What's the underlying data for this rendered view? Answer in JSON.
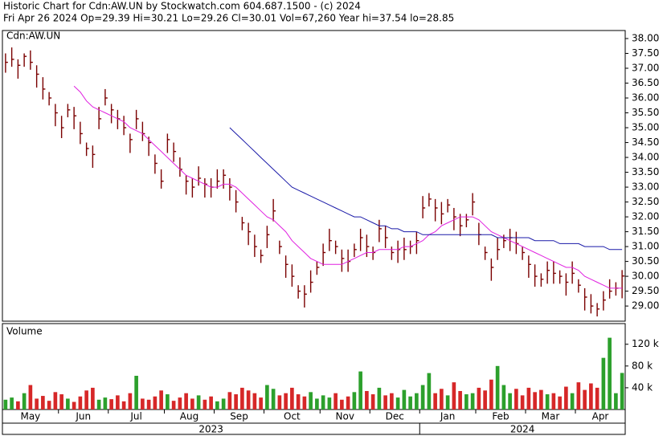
{
  "chart_data": {
    "type": "ohlc",
    "title": "Historic Chart for Cdn:AW.UN by Stockwatch.com 604.687.1500 - (c) 2024",
    "subtitle": "Fri Apr 26 2024  Op=29.39  Hi=30.21  Lo=29.26  Cl=30.01  Vol=67,260  Year hi=37.54  lo=28.85",
    "price_label": "Cdn:AW.UN",
    "volume_label": "Volume",
    "categories": [
      "May",
      null,
      null,
      null,
      null,
      null,
      null,
      null,
      null,
      "Jun",
      null,
      null,
      null,
      null,
      null,
      null,
      null,
      "Jul",
      null,
      null,
      null,
      null,
      null,
      null,
      null,
      null,
      "Aug",
      null,
      null,
      null,
      null,
      null,
      null,
      null,
      "Sep",
      null,
      null,
      null,
      null,
      null,
      null,
      null,
      "Oct",
      null,
      null,
      null,
      null,
      null,
      null,
      null,
      null,
      "Nov",
      null,
      null,
      null,
      null,
      null,
      null,
      null,
      "Dec",
      null,
      null,
      null,
      null,
      null,
      null,
      null,
      "Jan",
      null,
      null,
      null,
      null,
      null,
      null,
      null,
      null,
      "Feb",
      null,
      null,
      null,
      null,
      null,
      null,
      null,
      "Mar",
      null,
      null,
      null,
      null,
      null,
      null,
      null,
      "Apr",
      null,
      null,
      null,
      null,
      null,
      null,
      null
    ],
    "years": [
      "2023",
      null,
      null,
      null,
      null,
      null,
      null,
      null,
      null,
      null,
      null,
      null,
      null,
      null,
      null,
      null,
      null,
      null,
      null,
      null,
      null,
      null,
      null,
      null,
      null,
      null,
      null,
      null,
      null,
      null,
      null,
      null,
      null,
      null,
      null,
      null,
      null,
      null,
      null,
      null,
      null,
      null,
      null,
      null,
      null,
      null,
      null,
      null,
      null,
      null,
      null,
      null,
      null,
      null,
      null,
      null,
      null,
      null,
      null,
      null,
      null,
      null,
      null,
      null,
      null,
      null,
      null,
      "2024",
      null,
      null,
      null,
      null,
      null,
      null,
      null,
      null,
      null,
      null,
      null,
      null,
      null,
      null,
      null,
      null,
      null,
      null,
      null,
      null,
      null,
      null,
      null,
      null,
      null,
      null,
      null,
      null,
      null,
      null,
      null,
      null
    ],
    "bar_color": "#7a0000",
    "up_color": "#2ca02c",
    "down_color": "#d62728",
    "high": [
      37.5,
      37.7,
      37.3,
      37.5,
      37.6,
      37.1,
      36.7,
      36.2,
      35.8,
      35.4,
      35.8,
      35.7,
      35.2,
      34.5,
      34.4,
      35.7,
      36.3,
      35.8,
      35.6,
      35.4,
      34.8,
      35.6,
      35.2,
      34.7,
      34.1,
      33.6,
      34.8,
      34.5,
      34.0,
      33.4,
      33.3,
      33.7,
      33.3,
      33.3,
      33.6,
      33.6,
      33.3,
      32.9,
      32.0,
      31.8,
      31.4,
      30.9,
      31.7,
      32.6,
      31.2,
      30.7,
      30.4,
      29.7,
      29.7,
      30.2,
      30.5,
      31.1,
      31.6,
      31.2,
      30.9,
      30.9,
      31.1,
      31.6,
      31.4,
      31.0,
      31.9,
      31.7,
      31.0,
      31.2,
      31.3,
      31.2,
      31.5,
      32.7,
      32.8,
      32.6,
      32.5,
      32.6,
      32.3,
      32.1,
      32.1,
      32.8,
      31.8,
      31.0,
      30.6,
      31.3,
      31.4,
      31.6,
      31.5,
      31.0,
      30.7,
      30.4,
      30.1,
      30.5,
      30.5,
      30.2,
      30.1,
      30.5,
      29.9,
      29.6,
      29.4,
      29.1,
      29.5,
      29.9,
      29.8,
      30.21
    ],
    "low": [
      36.85,
      37.05,
      36.65,
      37.05,
      36.95,
      36.35,
      35.95,
      35.75,
      35.05,
      34.65,
      35.35,
      34.95,
      34.45,
      34.05,
      33.65,
      34.95,
      35.75,
      35.15,
      34.95,
      34.75,
      34.15,
      34.95,
      34.55,
      34.05,
      33.45,
      32.95,
      34.15,
      33.85,
      33.35,
      32.75,
      32.65,
      33.05,
      32.65,
      32.65,
      32.95,
      32.95,
      32.55,
      32.15,
      31.55,
      31.05,
      30.65,
      30.45,
      30.95,
      31.85,
      30.75,
      29.95,
      29.65,
      29.25,
      28.95,
      29.45,
      30.05,
      30.35,
      30.85,
      30.75,
      30.15,
      30.15,
      30.65,
      30.85,
      30.65,
      30.55,
      31.15,
      30.95,
      30.55,
      30.45,
      30.55,
      30.75,
      30.75,
      31.95,
      32.35,
      31.85,
      31.75,
      32.15,
      31.55,
      31.35,
      31.65,
      32.05,
      31.05,
      30.55,
      29.85,
      30.55,
      30.95,
      30.85,
      30.75,
      30.55,
      29.95,
      29.65,
      29.65,
      29.75,
      29.75,
      29.75,
      29.35,
      29.75,
      29.45,
      28.85,
      28.75,
      28.65,
      28.85,
      29.25,
      29.35,
      29.26
    ],
    "close": [
      37.2,
      37.3,
      37.1,
      37.4,
      37.2,
      36.8,
      36.3,
      36.0,
      35.5,
      35.0,
      35.6,
      35.4,
      34.8,
      34.3,
      34.1,
      35.3,
      36.0,
      35.6,
      35.3,
      35.0,
      34.6,
      35.3,
      34.8,
      34.5,
      33.8,
      33.2,
      34.6,
      34.2,
      33.6,
      33.2,
      33.0,
      33.3,
      33.1,
      33.0,
      33.2,
      33.4,
      33.0,
      32.5,
      31.8,
      31.5,
      31.0,
      30.7,
      31.4,
      32.2,
      31.0,
      30.4,
      30.0,
      29.5,
      29.4,
      29.8,
      30.3,
      30.8,
      31.2,
      31.0,
      30.6,
      30.5,
      30.9,
      31.3,
      31.0,
      30.8,
      31.6,
      31.3,
      30.8,
      30.9,
      30.9,
      31.0,
      31.2,
      32.3,
      32.6,
      32.3,
      32.1,
      32.4,
      32.0,
      31.7,
      31.9,
      32.5,
      31.4,
      30.8,
      30.3,
      30.9,
      31.2,
      31.3,
      31.1,
      30.8,
      30.4,
      30.0,
      29.9,
      30.2,
      30.1,
      30.0,
      29.8,
      30.1,
      29.7,
      29.3,
      29.0,
      28.9,
      29.2,
      29.5,
      29.6,
      30.01
    ],
    "moving_averages": [
      {
        "color": "#e020e0",
        "values": [
          null,
          null,
          null,
          null,
          null,
          null,
          null,
          null,
          null,
          null,
          null,
          36.4,
          36.2,
          35.9,
          35.7,
          35.6,
          35.5,
          35.4,
          35.3,
          35.2,
          35.0,
          34.9,
          34.8,
          34.6,
          34.4,
          34.2,
          34.0,
          33.8,
          33.6,
          33.4,
          33.3,
          33.2,
          33.1,
          33.0,
          33.0,
          33.1,
          33.1,
          33.0,
          32.8,
          32.6,
          32.4,
          32.2,
          32.0,
          31.9,
          31.7,
          31.5,
          31.2,
          31.0,
          30.8,
          30.6,
          30.5,
          30.4,
          30.4,
          30.4,
          30.4,
          30.5,
          30.6,
          30.7,
          30.8,
          30.8,
          30.9,
          30.9,
          30.9,
          30.9,
          31.0,
          31.0,
          31.1,
          31.2,
          31.4,
          31.5,
          31.7,
          31.8,
          31.9,
          32.0,
          32.0,
          32.0,
          31.9,
          31.7,
          31.5,
          31.4,
          31.3,
          31.2,
          31.1,
          31.0,
          30.9,
          30.8,
          30.7,
          30.6,
          30.5,
          30.4,
          30.3,
          30.3,
          30.2,
          30.0,
          29.9,
          29.8,
          29.7,
          29.6,
          29.6,
          29.6
        ]
      },
      {
        "color": "#1a1aa8",
        "values": [
          null,
          null,
          null,
          null,
          null,
          null,
          null,
          null,
          null,
          null,
          null,
          null,
          null,
          null,
          null,
          null,
          null,
          null,
          null,
          null,
          null,
          null,
          null,
          null,
          null,
          null,
          null,
          null,
          null,
          null,
          null,
          null,
          null,
          null,
          null,
          null,
          35.0,
          34.8,
          34.6,
          34.4,
          34.2,
          34.0,
          33.8,
          33.6,
          33.4,
          33.2,
          33.0,
          32.9,
          32.8,
          32.7,
          32.6,
          32.5,
          32.4,
          32.3,
          32.2,
          32.1,
          32.0,
          32.0,
          31.9,
          31.8,
          31.7,
          31.7,
          31.6,
          31.6,
          31.5,
          31.5,
          31.5,
          31.4,
          31.4,
          31.4,
          31.4,
          31.4,
          31.4,
          31.4,
          31.4,
          31.4,
          31.4,
          31.4,
          31.4,
          31.3,
          31.3,
          31.3,
          31.3,
          31.3,
          31.3,
          31.2,
          31.2,
          31.2,
          31.2,
          31.1,
          31.1,
          31.1,
          31.1,
          31.0,
          31.0,
          31.0,
          31.0,
          30.9,
          30.9,
          30.9
        ]
      }
    ],
    "ylim": [
      28.49,
      38.27
    ],
    "yticks": [
      {
        "value": 29,
        "label": "29.00"
      },
      {
        "value": 29.5,
        "label": "29.50"
      },
      {
        "value": 30,
        "label": "30.00"
      },
      {
        "value": 30.5,
        "label": "30.50"
      },
      {
        "value": 31,
        "label": "31.00"
      },
      {
        "value": 31.5,
        "label": "31.50"
      },
      {
        "value": 32,
        "label": "32.00"
      },
      {
        "value": 32.5,
        "label": "32.50"
      },
      {
        "value": 33,
        "label": "33.00"
      },
      {
        "value": 33.5,
        "label": "33.50"
      },
      {
        "value": 34,
        "label": "34.00"
      },
      {
        "value": 34.5,
        "label": "34.50"
      },
      {
        "value": 35,
        "label": "35.00"
      },
      {
        "value": 35.5,
        "label": "35.50"
      },
      {
        "value": 36,
        "label": "36.00"
      },
      {
        "value": 36.5,
        "label": "36.50"
      },
      {
        "value": 37,
        "label": "37.00"
      },
      {
        "value": 37.5,
        "label": "37.50"
      },
      {
        "value": 38,
        "label": "38.00"
      }
    ],
    "volume": [
      18000,
      22000,
      15000,
      30000,
      45000,
      20000,
      25000,
      16000,
      32000,
      28000,
      20000,
      14000,
      24000,
      35000,
      40000,
      18000,
      22000,
      19000,
      26000,
      15000,
      30000,
      62000,
      20000,
      18000,
      24000,
      35000,
      28000,
      16000,
      22000,
      30000,
      20000,
      26000,
      18000,
      24000,
      15000,
      20000,
      32000,
      28000,
      40000,
      35000,
      30000,
      22000,
      45000,
      38000,
      26000,
      30000,
      40000,
      28000,
      24000,
      32000,
      20000,
      26000,
      22000,
      30000,
      18000,
      24000,
      32000,
      70000,
      34000,
      28000,
      40000,
      26000,
      30000,
      22000,
      36000,
      24000,
      30000,
      45000,
      67000,
      30000,
      38000,
      26000,
      50000,
      34000,
      28000,
      30000,
      40000,
      35000,
      55000,
      80000,
      45000,
      30000,
      38000,
      26000,
      40000,
      32000,
      36000,
      28000,
      30000,
      24000,
      42000,
      30000,
      50000,
      36000,
      48000,
      40000,
      95000,
      132000,
      30000,
      67260
    ],
    "vol_ylim": [
      0,
      158000
    ],
    "vol_yticks": [
      {
        "value": 40000,
        "label": "40 k"
      },
      {
        "value": 80000,
        "label": "80 k"
      },
      {
        "value": 120000,
        "label": "120 k"
      }
    ]
  }
}
